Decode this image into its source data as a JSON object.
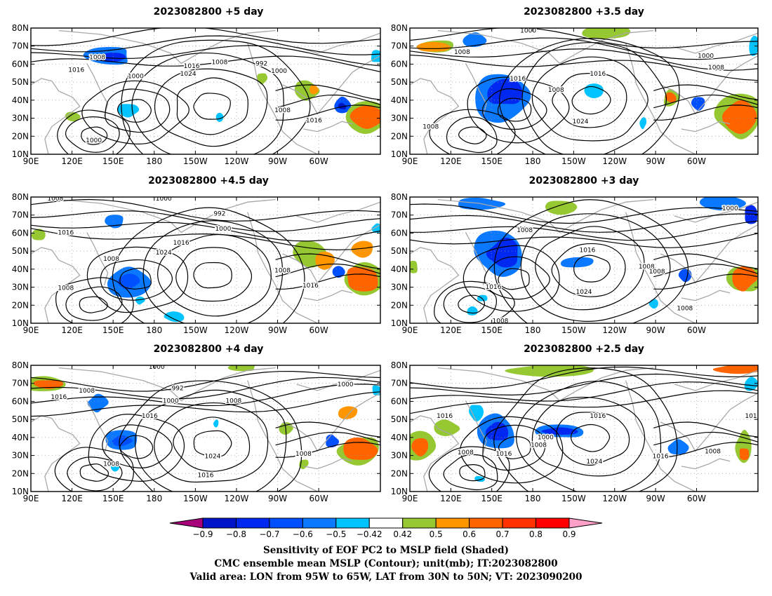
{
  "figure": {
    "panels": [
      {
        "title": "2023082800  +5 day",
        "labels": [
          {
            "t": "1008",
            "x": 0.19,
            "y": 0.77
          },
          {
            "t": "1016",
            "x": 0.13,
            "y": 0.67
          },
          {
            "t": "1000",
            "x": 0.3,
            "y": 0.62
          },
          {
            "t": "1016",
            "x": 0.46,
            "y": 0.7
          },
          {
            "t": "1024",
            "x": 0.45,
            "y": 0.64
          },
          {
            "t": "1008",
            "x": 0.54,
            "y": 0.73
          },
          {
            "t": "992",
            "x": 0.66,
            "y": 0.72
          },
          {
            "t": "1000",
            "x": 0.71,
            "y": 0.66
          },
          {
            "t": "1008",
            "x": 0.72,
            "y": 0.35
          },
          {
            "t": "1016",
            "x": 0.81,
            "y": 0.27
          },
          {
            "t": "1000",
            "x": 0.18,
            "y": 0.11
          }
        ]
      },
      {
        "title": "2023082800  +3.5 day",
        "labels": [
          {
            "t": "1000",
            "x": 0.34,
            "y": 0.98
          },
          {
            "t": "1008",
            "x": 0.15,
            "y": 0.81
          },
          {
            "t": "1016",
            "x": 0.31,
            "y": 0.6
          },
          {
            "t": "1008",
            "x": 0.42,
            "y": 0.51
          },
          {
            "t": "1016",
            "x": 0.54,
            "y": 0.64
          },
          {
            "t": "1024",
            "x": 0.49,
            "y": 0.26
          },
          {
            "t": "1000",
            "x": 0.85,
            "y": 0.78
          },
          {
            "t": "1008",
            "x": 0.88,
            "y": 0.69
          },
          {
            "t": "1008",
            "x": 0.06,
            "y": 0.22
          }
        ]
      },
      {
        "title": "2023082800  +4.5 day",
        "labels": [
          {
            "t": "1008",
            "x": 0.07,
            "y": 0.99
          },
          {
            "t": "1000",
            "x": 0.38,
            "y": 0.99
          },
          {
            "t": "992",
            "x": 0.54,
            "y": 0.87
          },
          {
            "t": "1016",
            "x": 0.1,
            "y": 0.72
          },
          {
            "t": "1000",
            "x": 0.55,
            "y": 0.75
          },
          {
            "t": "1016",
            "x": 0.43,
            "y": 0.64
          },
          {
            "t": "1024",
            "x": 0.38,
            "y": 0.56
          },
          {
            "t": "1008",
            "x": 0.23,
            "y": 0.51
          },
          {
            "t": "1008",
            "x": 0.72,
            "y": 0.42
          },
          {
            "t": "1016",
            "x": 0.8,
            "y": 0.3
          },
          {
            "t": "1008",
            "x": 0.1,
            "y": 0.28
          }
        ]
      },
      {
        "title": "2023082800  +3 day",
        "labels": [
          {
            "t": "1008",
            "x": 0.33,
            "y": 0.74
          },
          {
            "t": "1016",
            "x": 0.51,
            "y": 0.58
          },
          {
            "t": "1016",
            "x": 0.24,
            "y": 0.29
          },
          {
            "t": "1024",
            "x": 0.5,
            "y": 0.25
          },
          {
            "t": "1000",
            "x": 0.92,
            "y": 0.91
          },
          {
            "t": "1008",
            "x": 0.68,
            "y": 0.45
          },
          {
            "t": "1008",
            "x": 0.71,
            "y": 0.41
          },
          {
            "t": "1008",
            "x": 0.79,
            "y": 0.12
          },
          {
            "t": "1008",
            "x": 0.26,
            "y": 0.02
          }
        ]
      },
      {
        "title": "2023082800  +4 day",
        "labels": [
          {
            "t": "1000",
            "x": 0.36,
            "y": 0.99
          },
          {
            "t": "1008",
            "x": 0.16,
            "y": 0.8
          },
          {
            "t": "992",
            "x": 0.42,
            "y": 0.82
          },
          {
            "t": "1000",
            "x": 0.4,
            "y": 0.72
          },
          {
            "t": "1008",
            "x": 0.58,
            "y": 0.72
          },
          {
            "t": "1016",
            "x": 0.34,
            "y": 0.6
          },
          {
            "t": "1024",
            "x": 0.52,
            "y": 0.28
          },
          {
            "t": "1016",
            "x": 0.08,
            "y": 0.75
          },
          {
            "t": "1008",
            "x": 0.23,
            "y": 0.22
          },
          {
            "t": "1016",
            "x": 0.5,
            "y": 0.13
          },
          {
            "t": "1008",
            "x": 0.78,
            "y": 0.3
          },
          {
            "t": "1000",
            "x": 0.9,
            "y": 0.85
          }
        ]
      },
      {
        "title": "2023082800  +2.5 day",
        "labels": [
          {
            "t": "1016",
            "x": 0.1,
            "y": 0.6
          },
          {
            "t": "1000",
            "x": 0.39,
            "y": 0.43
          },
          {
            "t": "1008",
            "x": 0.37,
            "y": 0.37
          },
          {
            "t": "1016",
            "x": 0.54,
            "y": 0.6
          },
          {
            "t": "1016",
            "x": 0.27,
            "y": 0.3
          },
          {
            "t": "1008",
            "x": 0.16,
            "y": 0.31
          },
          {
            "t": "1024",
            "x": 0.53,
            "y": 0.24
          },
          {
            "t": "1016",
            "x": 0.72,
            "y": 0.28
          },
          {
            "t": "1008",
            "x": 0.87,
            "y": 0.32
          },
          {
            "t": "101",
            "x": 0.98,
            "y": 0.6
          }
        ]
      }
    ],
    "x_ticks": [
      "90E",
      "120E",
      "150E",
      "180",
      "150W",
      "120W",
      "90W",
      "60W"
    ],
    "y_ticks": [
      "10N",
      "20N",
      "30N",
      "40N",
      "50N",
      "60N",
      "70N",
      "80N"
    ],
    "colorbar": {
      "colors": [
        "#a8007a",
        "#0014c8",
        "#0028f0",
        "#0050ff",
        "#0a78ff",
        "#00c3ff",
        "#ffffff",
        "#96c832",
        "#ff9600",
        "#ff6400",
        "#ff3200",
        "#ff0000",
        "#ffa0c8"
      ],
      "labels": [
        "−0.9",
        "−0.8",
        "−0.7",
        "−0.6",
        "−0.5",
        "−0.42",
        "0.42",
        "0.5",
        "0.6",
        "0.7",
        "0.8",
        "0.9"
      ]
    },
    "caption": [
      "Sensitivity of EOF PC2 to MSLP field (Shaded)",
      "CMC ensemble mean MSLP (Contour); unit(mb); IT:2023082800",
      "Valid area: LON from 95W to 65W, LAT from 30N to 50N; VT: 2023090200"
    ]
  }
}
